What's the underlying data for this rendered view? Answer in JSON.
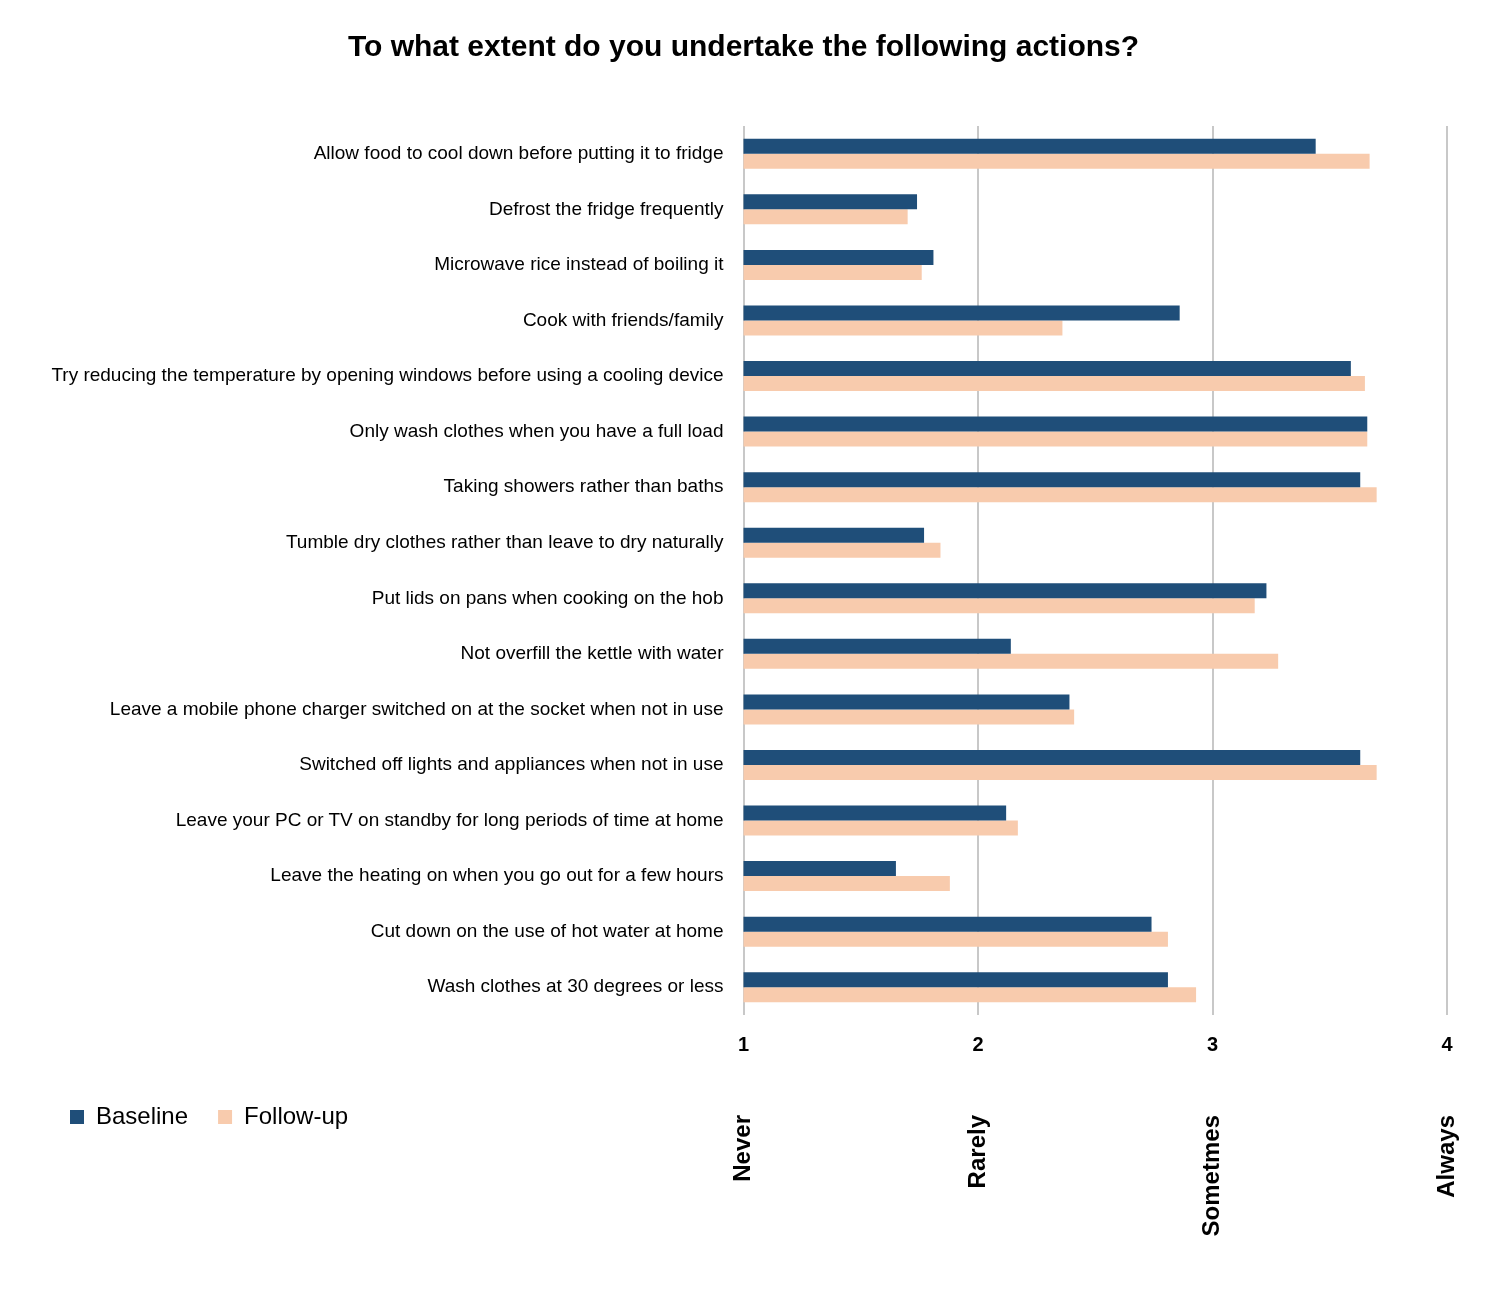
{
  "chart_data": {
    "type": "bar",
    "orientation": "horizontal",
    "title": "To what extent do you undertake the following actions?",
    "categories": [
      "Allow food to cool down before putting it to fridge",
      "Defrost the fridge frequently",
      "Microwave rice instead of boiling it",
      "Cook with friends/family",
      "Try reducing the temperature by opening windows before using a cooling device",
      "Only wash clothes when you have a full load",
      "Taking showers rather than baths",
      "Tumble dry clothes rather than leave to dry naturally",
      "Put lids on pans when cooking on the hob",
      "Not overfill the kettle with water",
      "Leave a mobile phone charger switched on at the socket when not in use",
      "Switched off lights and appliances when not in use",
      "Leave your PC or TV on standby for long periods of time at home",
      "Leave the heating on when you go out for a few hours",
      "Cut down on the use of hot water at home",
      "Wash clothes at 30 degrees or less"
    ],
    "series": [
      {
        "name": "Baseline",
        "color": "#1f4e79",
        "values": [
          3.44,
          1.74,
          1.81,
          2.86,
          3.59,
          3.66,
          3.63,
          1.77,
          3.23,
          2.14,
          2.39,
          3.63,
          2.12,
          1.65,
          2.74,
          2.81
        ]
      },
      {
        "name": "Follow-up",
        "color": "#f8cbad",
        "values": [
          3.67,
          1.7,
          1.76,
          2.36,
          3.65,
          3.66,
          3.7,
          1.84,
          3.18,
          3.28,
          2.41,
          3.7,
          2.17,
          1.88,
          2.81,
          2.93
        ]
      }
    ],
    "xlim": [
      1,
      4
    ],
    "xticks": [
      1,
      2,
      3,
      4
    ],
    "grid": "x",
    "legend": "bottom left",
    "annotations": [
      "Never",
      "Rarely",
      "Sometmes",
      "Always"
    ]
  }
}
